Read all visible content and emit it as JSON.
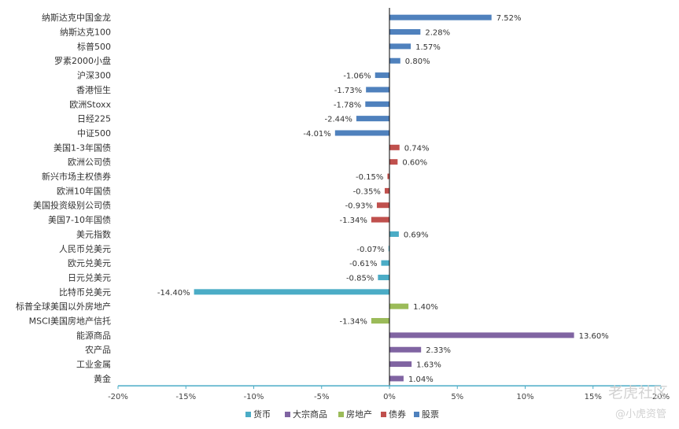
{
  "chart_data": {
    "type": "bar",
    "orientation": "horizontal",
    "categories": [
      "纳斯达克中国金龙",
      "纳斯达克100",
      "标普500",
      "罗素2000小盘",
      "沪深300",
      "香港恒生",
      "欧洲Stoxx",
      "日经225",
      "中证500",
      "美国1-3年国债",
      "欧洲公司债",
      "新兴市场主权债券",
      "欧洲10年国债",
      "美国投资级别公司债",
      "美国7-10年国债",
      "美元指数",
      "人民币兑美元",
      "欧元兑美元",
      "日元兑美元",
      "比特币兑美元",
      "标普全球美国以外房地产",
      "MSCI美国房地产信托",
      "能源商品",
      "农产品",
      "工业金属",
      "黄金"
    ],
    "values": [
      7.52,
      2.28,
      1.57,
      0.8,
      -1.06,
      -1.73,
      -1.78,
      -2.44,
      -4.01,
      0.74,
      0.6,
      -0.15,
      -0.35,
      -0.93,
      -1.34,
      0.69,
      -0.07,
      -0.61,
      -0.85,
      -14.4,
      1.4,
      -1.34,
      13.6,
      2.33,
      1.63,
      1.04
    ],
    "value_labels": [
      "7.52%",
      "2.28%",
      "1.57%",
      "0.80%",
      "-1.06%",
      "-1.73%",
      "-1.78%",
      "-2.44%",
      "-4.01%",
      "0.74%",
      "0.60%",
      "-0.15%",
      "-0.35%",
      "-0.93%",
      "-1.34%",
      "0.69%",
      "-0.07%",
      "-0.61%",
      "-0.85%",
      "-14.40%",
      "1.40%",
      "-1.34%",
      "13.60%",
      "2.33%",
      "1.63%",
      "1.04%"
    ],
    "groups": [
      "股票",
      "股票",
      "股票",
      "股票",
      "股票",
      "股票",
      "股票",
      "股票",
      "股票",
      "债券",
      "债券",
      "债券",
      "债券",
      "债券",
      "债券",
      "货币",
      "货币",
      "货币",
      "货币",
      "货币",
      "房地产",
      "房地产",
      "大宗商品",
      "大宗商品",
      "大宗商品",
      "大宗商品"
    ],
    "legend": [
      "货币",
      "大宗商品",
      "房地产",
      "债券",
      "股票"
    ],
    "colors": {
      "货币": "#4bacc6",
      "大宗商品": "#8064a2",
      "房地产": "#9bbb59",
      "债券": "#c0504d",
      "股票": "#4f81bd"
    },
    "xlim": [
      -20,
      20
    ],
    "xticks": [
      -20,
      -15,
      -10,
      -5,
      0,
      5,
      10,
      15,
      20
    ],
    "xtick_labels": [
      "-20%",
      "-15%",
      "-10%",
      "-5%",
      "0%",
      "5%",
      "10%",
      "15%",
      "20%"
    ],
    "legend_position": "bottom",
    "grid": false
  },
  "watermark": {
    "line1": "老虎社区",
    "line2": "@小虎资管"
  }
}
